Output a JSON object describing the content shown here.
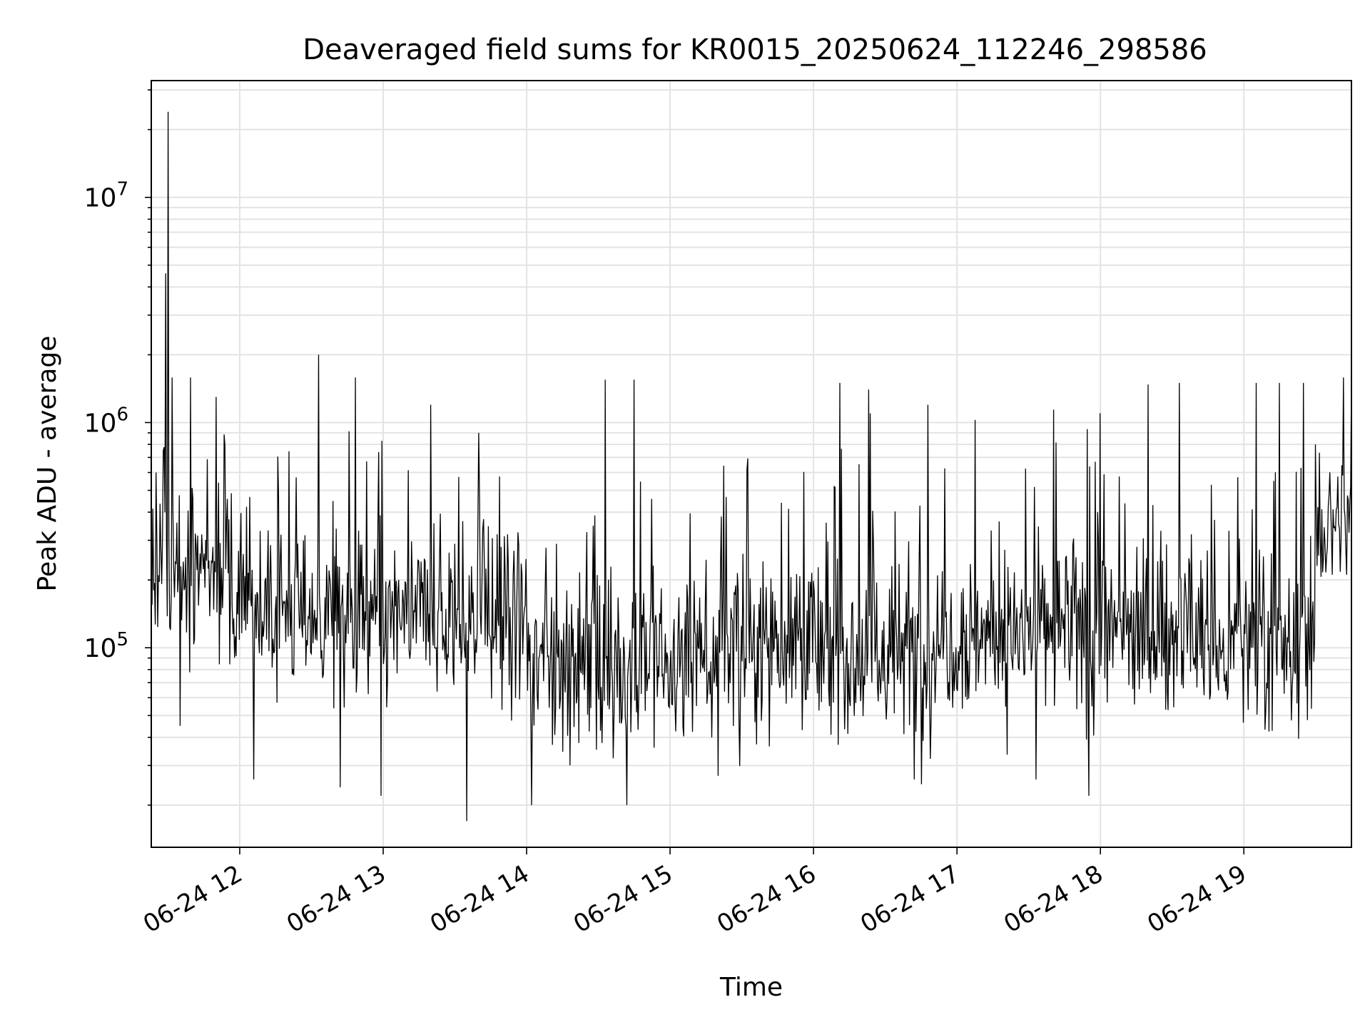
{
  "chart_data": {
    "type": "line",
    "title": "Deaveraged field sums for KR0015_20250624_112246_298586",
    "xlabel": "Time",
    "ylabel": "Peak ADU - average",
    "x_axis": {
      "scale": "time",
      "range": [
        "06-24 11:23",
        "06-24 19:45"
      ],
      "ticks": [
        "06-24 12",
        "06-24 13",
        "06-24 14",
        "06-24 15",
        "06-24 16",
        "06-24 17",
        "06-24 18",
        "06-24 19"
      ],
      "tick_label_rotation": 30
    },
    "y_axis": {
      "scale": "log",
      "range": [
        13000,
        33000000
      ],
      "ticks": [
        {
          "value": 100000,
          "base": "10",
          "exp": "5"
        },
        {
          "value": 1000000,
          "base": "10",
          "exp": "6"
        },
        {
          "value": 10000000,
          "base": "10",
          "exp": "7"
        }
      ]
    },
    "grid": true,
    "grid_minor": true,
    "legend": "none",
    "line_color": "#000000",
    "series": [
      {
        "x_start": "06-24 11:23",
        "x_end": "06-24 19:45",
        "points": [
          {
            "x": "06-24 11:23",
            "y": 350000
          },
          {
            "x": "06-24 11:24",
            "y": 180000
          },
          {
            "x": "06-24 11:25",
            "y": 600000
          },
          {
            "x": "06-24 11:26",
            "y": 210000
          },
          {
            "x": "06-24 11:28",
            "y": 750000
          },
          {
            "x": "06-24 11:29",
            "y": 4600000
          },
          {
            "x": "06-24 11:30",
            "y": 24000000
          },
          {
            "x": "06-24 11:31",
            "y": 120000
          },
          {
            "x": "06-24 11:35",
            "y": 45000
          },
          {
            "x": "06-24 11:50",
            "y": 1300000
          },
          {
            "x": "06-24 12:06",
            "y": 26000
          },
          {
            "x": "06-24 12:33",
            "y": 2000000
          },
          {
            "x": "06-24 12:42",
            "y": 24000
          },
          {
            "x": "06-24 12:59",
            "y": 22000
          },
          {
            "x": "06-24 13:20",
            "y": 1200000
          },
          {
            "x": "06-24 13:35",
            "y": 17000
          },
          {
            "x": "06-24 13:40",
            "y": 900000
          },
          {
            "x": "06-24 14:02",
            "y": 20000
          },
          {
            "x": "06-24 14:33",
            "y": 1550000
          },
          {
            "x": "06-24 14:42",
            "y": 20000
          },
          {
            "x": "06-24 14:45",
            "y": 1550000
          },
          {
            "x": "06-24 15:20",
            "y": 27000
          },
          {
            "x": "06-24 16:11",
            "y": 1500000
          },
          {
            "x": "06-24 16:23",
            "y": 1400000
          },
          {
            "x": "06-24 16:42",
            "y": 26000
          },
          {
            "x": "06-24 16:48",
            "y": 1200000
          },
          {
            "x": "06-24 17:33",
            "y": 26000
          },
          {
            "x": "06-24 17:55",
            "y": 22000
          },
          {
            "x": "06-24 18:00",
            "y": 1100000
          },
          {
            "x": "06-24 18:33",
            "y": 1500000
          },
          {
            "x": "06-24 19:05",
            "y": 1500000
          },
          {
            "x": "06-24 19:15",
            "y": 1500000
          },
          {
            "x": "06-24 19:25",
            "y": 1500000
          },
          {
            "x": "06-24 19:30",
            "y": 800000
          },
          {
            "x": "06-24 19:45",
            "y": 1600000
          }
        ]
      }
    ]
  }
}
